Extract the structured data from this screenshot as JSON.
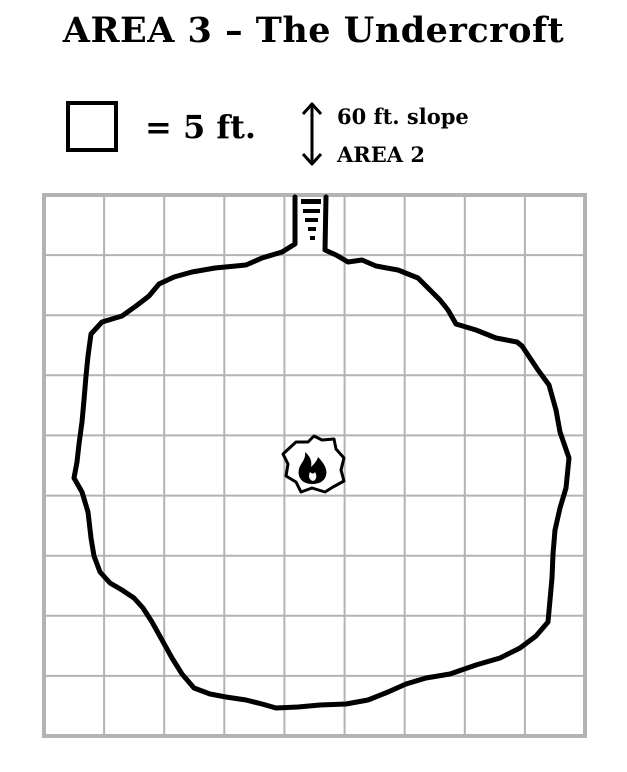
{
  "title": "AREA 3 – The Undercroft",
  "legend": {
    "scale_label": "= 5 ft.",
    "slope_label": "60 ft. slope",
    "destination_label": "AREA 2"
  },
  "map": {
    "grid_columns": 9,
    "grid_rows": 9,
    "grid_color": "#b3b3b3",
    "wall_color": "#000000",
    "feature_icon": "fire-icon",
    "passage_icon": "stairs-icon"
  }
}
